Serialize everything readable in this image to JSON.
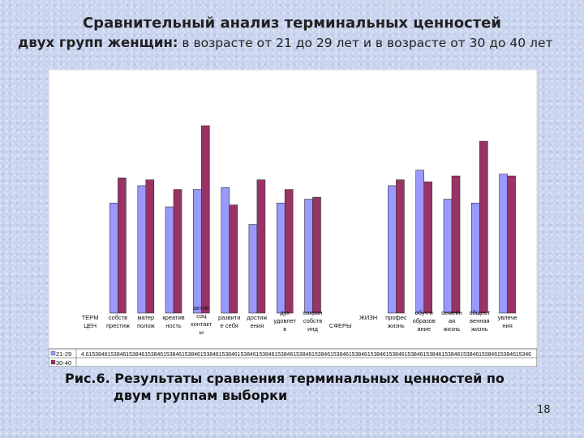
{
  "slide": {
    "title_line1": "Сравнительный анализ терминальных ценностей",
    "title_line2_bold": "двух групп женщин:",
    "title_line2_rest": " в возрасте от 21 до 29 лет и в возрасте от 30 до 40 лет",
    "caption_line1": "Рис.6. Результаты сравнения терминальных ценностей по",
    "caption_line2": "двум группам выборки",
    "page_number": "18"
  },
  "colors": {
    "series1": "#9999ff",
    "series2": "#993366",
    "plot_bg": "#ffffff"
  },
  "chart_data": {
    "type": "bar",
    "categories": [
      [
        "ТЕРМ",
        "ЦЕН"
      ],
      [
        "собств",
        "престиж"
      ],
      [
        "матер",
        "полож"
      ],
      [
        "креатив",
        "ность"
      ],
      [
        "актив",
        "соц",
        "контакт",
        "ы"
      ],
      [
        "развити",
        "е себя"
      ],
      [
        "достиж",
        "ения"
      ],
      [
        "дух",
        "удовлет",
        "в"
      ],
      [
        "сохран",
        "собств",
        "инд"
      ],
      [
        "",
        "СФЕРЫ"
      ],
      [
        "ЖИЗН",
        ""
      ],
      [
        "профес",
        "жизнь"
      ],
      [
        "обуч и",
        "образов",
        "ание"
      ],
      [
        "семейн",
        "ая",
        "жизнь"
      ],
      [
        "общест",
        "венная",
        "жизнь"
      ],
      [
        "увлече",
        "ния"
      ]
    ],
    "series": [
      {
        "name": "21-29",
        "row_text": "4.615384615384615384615384615384615384615384615384615384615384615384615384615384615384615384615384615384615384615384615384615384615384615384615346",
        "values": [
          0,
          5.7,
          6.6,
          5.5,
          6.4,
          6.5,
          4.6,
          5.7,
          5.9,
          0,
          0,
          6.6,
          7.4,
          5.9,
          5.7,
          7.2
        ]
      },
      {
        "name": "30-40",
        "row_text": "",
        "values": [
          0,
          7.0,
          6.9,
          6.4,
          9.7,
          5.6,
          6.9,
          6.4,
          6.0,
          0,
          0,
          6.9,
          6.8,
          7.1,
          8.9,
          7.1
        ]
      }
    ],
    "ylim": [
      0,
      10.5
    ],
    "grid": false,
    "legend": "none"
  }
}
